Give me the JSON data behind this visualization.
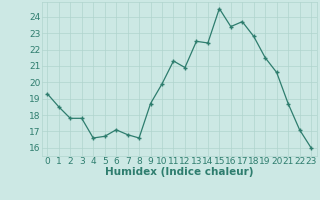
{
  "x": [
    0,
    1,
    2,
    3,
    4,
    5,
    6,
    7,
    8,
    9,
    10,
    11,
    12,
    13,
    14,
    15,
    16,
    17,
    18,
    19,
    20,
    21,
    22,
    23
  ],
  "y": [
    19.3,
    18.5,
    17.8,
    17.8,
    16.6,
    16.7,
    17.1,
    16.8,
    16.6,
    18.7,
    19.9,
    21.3,
    20.9,
    22.5,
    22.4,
    24.5,
    23.4,
    23.7,
    22.8,
    21.5,
    20.6,
    18.7,
    17.1,
    16.0
  ],
  "bg_color": "#cce8e4",
  "grid_color": "#b0d4ce",
  "line_color": "#2e7d6e",
  "marker_color": "#2e7d6e",
  "xlabel": "Humidex (Indice chaleur)",
  "ylabel_ticks": [
    16,
    17,
    18,
    19,
    20,
    21,
    22,
    23,
    24
  ],
  "xlim": [
    -0.5,
    23.5
  ],
  "ylim": [
    15.5,
    24.9
  ],
  "xticks": [
    0,
    1,
    2,
    3,
    4,
    5,
    6,
    7,
    8,
    9,
    10,
    11,
    12,
    13,
    14,
    15,
    16,
    17,
    18,
    19,
    20,
    21,
    22,
    23
  ],
  "font_color": "#2e7d6e",
  "xlabel_fontsize": 7.5,
  "tick_fontsize": 6.5
}
